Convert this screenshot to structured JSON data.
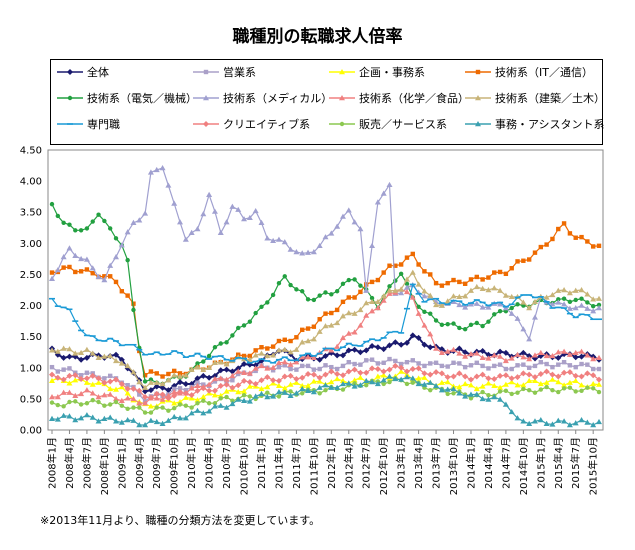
{
  "chart_data": {
    "type": "line",
    "title": "職種別の転職求人倍率",
    "note": "※2013年11月より、職種の分類方法を変更しています。",
    "xlabel": "",
    "ylabel": "",
    "ylim": [
      0,
      4.5
    ],
    "yticks": [
      "0.00",
      "0.50",
      "1.00",
      "1.50",
      "2.00",
      "2.50",
      "3.00",
      "3.50",
      "4.00",
      "4.50"
    ],
    "x_tick_labels": [
      "2008年1月",
      "2008年4月",
      "2008年7月",
      "2008年10月",
      "2009年1月",
      "2009年4月",
      "2009年7月",
      "2009年10月",
      "2010年1月",
      "2010年4月",
      "2010年7月",
      "2010年10月",
      "2011年1月",
      "2011年4月",
      "2011年7月",
      "2011年10月",
      "2012年1月",
      "2012年4月",
      "2012年7月",
      "2012年10月",
      "2013年1月",
      "2013年4月",
      "2013年7月",
      "2013年10月",
      "2014年1月",
      "2014年4月",
      "2014年7月",
      "2014年10月",
      "2015年1月",
      "2015年4月",
      "2015年7月",
      "2015年10月"
    ],
    "n_points": 95,
    "series": [
      {
        "name": "全体",
        "color": "#1a1a6e",
        "marker": "diamond",
        "keys": [
          [
            0,
            1.27
          ],
          [
            3,
            1.15
          ],
          [
            9,
            1.2
          ],
          [
            12,
            1.15
          ],
          [
            16,
            0.65
          ],
          [
            20,
            0.68
          ],
          [
            24,
            0.78
          ],
          [
            30,
            0.95
          ],
          [
            36,
            1.1
          ],
          [
            39,
            1.3
          ],
          [
            42,
            1.15
          ],
          [
            45,
            1.15
          ],
          [
            48,
            1.2
          ],
          [
            54,
            1.3
          ],
          [
            60,
            1.38
          ],
          [
            62,
            1.5
          ],
          [
            66,
            1.3
          ],
          [
            72,
            1.25
          ],
          [
            78,
            1.22
          ],
          [
            84,
            1.18
          ],
          [
            90,
            1.2
          ],
          [
            94,
            1.17
          ]
        ],
        "values": []
      },
      {
        "name": "営業系",
        "color": "#aaa0c8",
        "marker": "square",
        "keys": [
          [
            0,
            1.0
          ],
          [
            6,
            0.9
          ],
          [
            12,
            0.8
          ],
          [
            16,
            0.5
          ],
          [
            20,
            0.6
          ],
          [
            24,
            0.7
          ],
          [
            30,
            0.8
          ],
          [
            36,
            1.0
          ],
          [
            42,
            1.0
          ],
          [
            48,
            1.0
          ],
          [
            54,
            1.1
          ],
          [
            60,
            1.1
          ],
          [
            66,
            1.05
          ],
          [
            72,
            1.05
          ],
          [
            78,
            1.0
          ],
          [
            84,
            1.05
          ],
          [
            90,
            1.05
          ],
          [
            94,
            1.0
          ]
        ],
        "values": []
      },
      {
        "name": "企画・事務系",
        "color": "#ffff00",
        "marker": "triangle",
        "keys": [
          [
            0,
            0.8
          ],
          [
            6,
            0.78
          ],
          [
            12,
            0.65
          ],
          [
            16,
            0.38
          ],
          [
            20,
            0.45
          ],
          [
            24,
            0.5
          ],
          [
            30,
            0.6
          ],
          [
            36,
            0.7
          ],
          [
            42,
            0.72
          ],
          [
            48,
            0.78
          ],
          [
            54,
            0.8
          ],
          [
            60,
            0.9
          ],
          [
            66,
            0.75
          ],
          [
            72,
            0.7
          ],
          [
            78,
            0.72
          ],
          [
            84,
            0.78
          ],
          [
            90,
            0.75
          ],
          [
            94,
            0.7
          ]
        ],
        "values": []
      },
      {
        "name": "技術系（IT／通信）",
        "color": "#ee6a00",
        "marker": "square",
        "keys": [
          [
            0,
            2.55
          ],
          [
            3,
            2.6
          ],
          [
            8,
            2.5
          ],
          [
            11,
            2.4
          ],
          [
            14,
            2.0
          ],
          [
            15,
            1.3
          ],
          [
            16,
            0.9
          ],
          [
            20,
            0.9
          ],
          [
            24,
            0.95
          ],
          [
            30,
            1.1
          ],
          [
            36,
            1.3
          ],
          [
            42,
            1.5
          ],
          [
            48,
            1.9
          ],
          [
            54,
            2.3
          ],
          [
            58,
            2.6
          ],
          [
            60,
            2.7
          ],
          [
            62,
            2.8
          ],
          [
            66,
            2.35
          ],
          [
            72,
            2.4
          ],
          [
            78,
            2.55
          ],
          [
            84,
            2.9
          ],
          [
            88,
            3.3
          ],
          [
            90,
            3.1
          ],
          [
            94,
            2.95
          ]
        ],
        "values": []
      },
      {
        "name": "技術系（電気／機械）",
        "color": "#22a040",
        "marker": "circle",
        "keys": [
          [
            0,
            3.65
          ],
          [
            2,
            3.3
          ],
          [
            6,
            3.2
          ],
          [
            8,
            3.5
          ],
          [
            10,
            3.2
          ],
          [
            12,
            3.0
          ],
          [
            13,
            2.7
          ],
          [
            14,
            1.9
          ],
          [
            16,
            0.8
          ],
          [
            18,
            0.75
          ],
          [
            22,
            0.85
          ],
          [
            24,
            0.95
          ],
          [
            28,
            1.3
          ],
          [
            32,
            1.6
          ],
          [
            36,
            1.95
          ],
          [
            40,
            2.45
          ],
          [
            44,
            2.1
          ],
          [
            48,
            2.2
          ],
          [
            52,
            2.45
          ],
          [
            56,
            2.0
          ],
          [
            60,
            2.55
          ],
          [
            62,
            2.1
          ],
          [
            66,
            1.75
          ],
          [
            70,
            1.65
          ],
          [
            74,
            1.7
          ],
          [
            78,
            1.95
          ],
          [
            84,
            2.05
          ],
          [
            90,
            2.1
          ],
          [
            94,
            2.0
          ]
        ],
        "values": []
      },
      {
        "name": "技術系（メディカル）",
        "color": "#a0a0d0",
        "marker": "triangle",
        "keys": [
          [
            0,
            2.45
          ],
          [
            3,
            2.9
          ],
          [
            6,
            2.7
          ],
          [
            9,
            2.4
          ],
          [
            12,
            3.0
          ],
          [
            14,
            3.3
          ],
          [
            16,
            3.5
          ],
          [
            17,
            4.1
          ],
          [
            19,
            4.25
          ],
          [
            21,
            3.6
          ],
          [
            23,
            3.1
          ],
          [
            25,
            3.2
          ],
          [
            27,
            3.8
          ],
          [
            29,
            3.15
          ],
          [
            31,
            3.6
          ],
          [
            33,
            3.4
          ],
          [
            35,
            3.5
          ],
          [
            37,
            3.1
          ],
          [
            40,
            3.0
          ],
          [
            43,
            2.8
          ],
          [
            46,
            2.95
          ],
          [
            49,
            3.3
          ],
          [
            51,
            3.5
          ],
          [
            53,
            3.25
          ],
          [
            54,
            2.2
          ],
          [
            56,
            3.7
          ],
          [
            58,
            3.9
          ],
          [
            59,
            2.2
          ],
          [
            62,
            2.3
          ],
          [
            66,
            2.05
          ],
          [
            72,
            2.0
          ],
          [
            78,
            2.0
          ],
          [
            82,
            1.5
          ],
          [
            84,
            2.1
          ],
          [
            88,
            2.0
          ],
          [
            92,
            1.95
          ],
          [
            94,
            1.95
          ]
        ],
        "values": []
      },
      {
        "name": "技術系（化学／食品）",
        "color": "#f08080",
        "marker": "triangle",
        "keys": [
          [
            0,
            0.55
          ],
          [
            6,
            0.6
          ],
          [
            12,
            0.5
          ],
          [
            16,
            0.45
          ],
          [
            20,
            0.55
          ],
          [
            24,
            0.65
          ],
          [
            30,
            0.85
          ],
          [
            36,
            1.0
          ],
          [
            42,
            1.1
          ],
          [
            48,
            1.3
          ],
          [
            52,
            1.6
          ],
          [
            56,
            2.0
          ],
          [
            60,
            2.3
          ],
          [
            62,
            2.1
          ],
          [
            66,
            1.3
          ],
          [
            72,
            1.2
          ],
          [
            78,
            1.15
          ],
          [
            84,
            1.2
          ],
          [
            90,
            1.25
          ],
          [
            94,
            1.15
          ]
        ],
        "values": []
      },
      {
        "name": "技術系（建築／土木）",
        "color": "#c8b478",
        "marker": "triangle",
        "keys": [
          [
            0,
            1.3
          ],
          [
            6,
            1.25
          ],
          [
            12,
            1.1
          ],
          [
            16,
            0.7
          ],
          [
            20,
            0.8
          ],
          [
            24,
            0.95
          ],
          [
            30,
            1.1
          ],
          [
            36,
            1.2
          ],
          [
            42,
            1.3
          ],
          [
            48,
            1.7
          ],
          [
            52,
            1.9
          ],
          [
            56,
            2.1
          ],
          [
            60,
            2.3
          ],
          [
            62,
            2.5
          ],
          [
            66,
            2.0
          ],
          [
            70,
            2.15
          ],
          [
            74,
            2.3
          ],
          [
            78,
            2.2
          ],
          [
            82,
            2.0
          ],
          [
            86,
            2.2
          ],
          [
            90,
            2.25
          ],
          [
            94,
            2.1
          ]
        ],
        "values": []
      },
      {
        "name": "専門職",
        "color": "#1a9ad6",
        "marker": "dash",
        "keys": [
          [
            0,
            2.1
          ],
          [
            3,
            1.9
          ],
          [
            6,
            1.5
          ],
          [
            9,
            1.45
          ],
          [
            12,
            1.4
          ],
          [
            15,
            1.3
          ],
          [
            17,
            1.2
          ],
          [
            20,
            1.25
          ],
          [
            24,
            1.2
          ],
          [
            30,
            1.15
          ],
          [
            36,
            1.1
          ],
          [
            42,
            1.15
          ],
          [
            48,
            1.3
          ],
          [
            54,
            1.4
          ],
          [
            60,
            1.6
          ],
          [
            62,
            2.3
          ],
          [
            64,
            2.1
          ],
          [
            68,
            2.05
          ],
          [
            74,
            2.05
          ],
          [
            78,
            2.0
          ],
          [
            82,
            2.2
          ],
          [
            86,
            2.0
          ],
          [
            90,
            1.85
          ],
          [
            94,
            1.8
          ]
        ],
        "values": []
      },
      {
        "name": "クリエイティブ系",
        "color": "#f08080",
        "marker": "diamond",
        "keys": [
          [
            0,
            0.85
          ],
          [
            6,
            0.85
          ],
          [
            12,
            0.75
          ],
          [
            16,
            0.55
          ],
          [
            20,
            0.55
          ],
          [
            24,
            0.6
          ],
          [
            30,
            0.7
          ],
          [
            36,
            0.8
          ],
          [
            42,
            0.85
          ],
          [
            48,
            0.9
          ],
          [
            54,
            0.95
          ],
          [
            60,
            1.0
          ],
          [
            66,
            0.9
          ],
          [
            72,
            0.85
          ],
          [
            78,
            0.85
          ],
          [
            84,
            0.9
          ],
          [
            90,
            0.9
          ],
          [
            94,
            0.85
          ]
        ],
        "values": []
      },
      {
        "name": "販売／サービス系",
        "color": "#8cc850",
        "marker": "circle",
        "keys": [
          [
            0,
            0.4
          ],
          [
            6,
            0.45
          ],
          [
            12,
            0.4
          ],
          [
            16,
            0.3
          ],
          [
            20,
            0.35
          ],
          [
            24,
            0.4
          ],
          [
            30,
            0.5
          ],
          [
            36,
            0.55
          ],
          [
            42,
            0.6
          ],
          [
            48,
            0.65
          ],
          [
            54,
            0.75
          ],
          [
            60,
            0.8
          ],
          [
            66,
            0.65
          ],
          [
            72,
            0.55
          ],
          [
            78,
            0.6
          ],
          [
            84,
            0.65
          ],
          [
            90,
            0.65
          ],
          [
            94,
            0.65
          ]
        ],
        "values": []
      },
      {
        "name": "事務・アシスタント系",
        "color": "#3aa0b0",
        "marker": "triangle",
        "keys": [
          [
            0,
            0.2
          ],
          [
            6,
            0.2
          ],
          [
            12,
            0.15
          ],
          [
            16,
            0.1
          ],
          [
            20,
            0.15
          ],
          [
            24,
            0.25
          ],
          [
            30,
            0.4
          ],
          [
            36,
            0.55
          ],
          [
            42,
            0.6
          ],
          [
            48,
            0.7
          ],
          [
            54,
            0.75
          ],
          [
            60,
            0.85
          ],
          [
            66,
            0.7
          ],
          [
            72,
            0.55
          ],
          [
            76,
            0.5
          ],
          [
            78,
            0.45
          ],
          [
            80,
            0.15
          ],
          [
            84,
            0.12
          ],
          [
            90,
            0.12
          ],
          [
            94,
            0.12
          ]
        ],
        "values": []
      }
    ]
  }
}
